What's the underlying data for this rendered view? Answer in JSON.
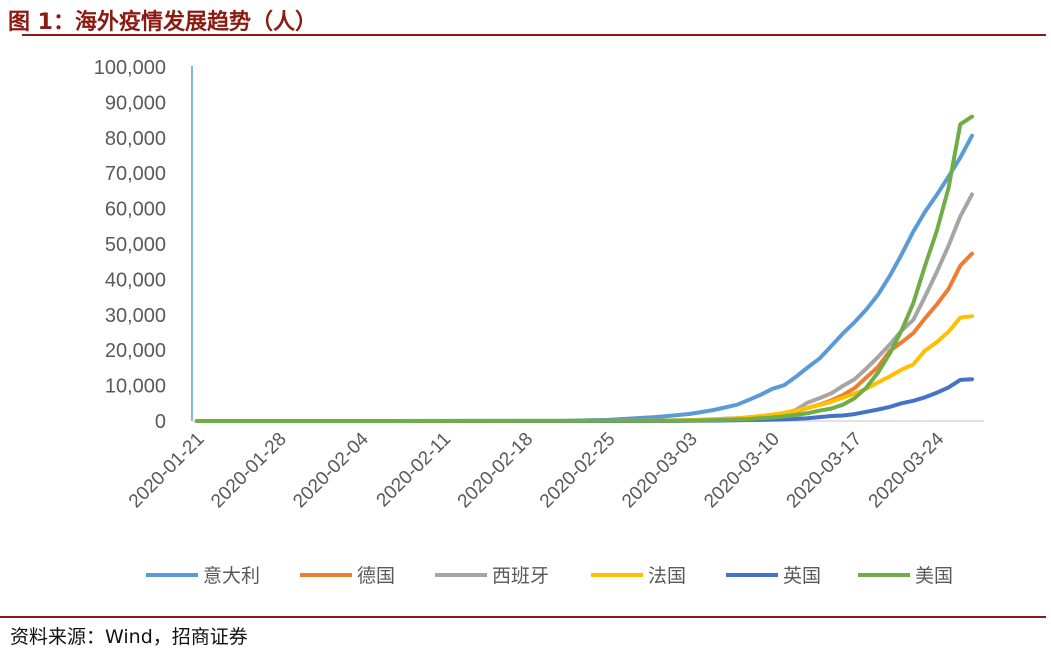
{
  "header": {
    "title": "图 1：海外疫情发展趋势（人）"
  },
  "footer": {
    "source": "资料来源：Wind，招商证券"
  },
  "chart_data": {
    "type": "line",
    "title": "",
    "xlabel": "",
    "ylabel": "",
    "ylim": [
      0,
      100000
    ],
    "yticks": [
      "0",
      "10,000",
      "20,000",
      "30,000",
      "40,000",
      "50,000",
      "60,000",
      "70,000",
      "80,000",
      "90,000",
      "100,000"
    ],
    "xticks": [
      "2020-01-21",
      "2020-01-28",
      "2020-02-04",
      "2020-02-11",
      "2020-02-18",
      "2020-02-25",
      "2020-03-03",
      "2020-03-10",
      "2020-03-17",
      "2020-03-24"
    ],
    "x": [
      "2020-01-21",
      "2020-02-21",
      "2020-02-25",
      "2020-02-29",
      "2020-03-02",
      "2020-03-03",
      "2020-03-05",
      "2020-03-07",
      "2020-03-08",
      "2020-03-09",
      "2020-03-10",
      "2020-03-11",
      "2020-03-12",
      "2020-03-13",
      "2020-03-14",
      "2020-03-15",
      "2020-03-16",
      "2020-03-17",
      "2020-03-18",
      "2020-03-19",
      "2020-03-20",
      "2020-03-21",
      "2020-03-22",
      "2020-03-23",
      "2020-03-24",
      "2020-03-25",
      "2020-03-26",
      "2020-03-27"
    ],
    "legend_position": "bottom",
    "grid": false,
    "series": [
      {
        "name": "意大利",
        "color": "#5b9bd5",
        "values": [
          0,
          20,
          300,
          1100,
          1700,
          2000,
          3100,
          4600,
          6000,
          7400,
          9100,
          10100,
          12500,
          15100,
          17600,
          21100,
          24700,
          27900,
          31500,
          35700,
          41000,
          47000,
          53500,
          59100,
          63900,
          69000,
          74400,
          80600
        ]
      },
      {
        "name": "德国",
        "color": "#ed7d31",
        "values": [
          0,
          0,
          16,
          60,
          150,
          190,
          480,
          800,
          1000,
          1200,
          1500,
          1900,
          2700,
          3700,
          4600,
          5800,
          7300,
          9300,
          12300,
          15300,
          19800,
          22200,
          24800,
          29000,
          32900,
          37300,
          43900,
          47300
        ]
      },
      {
        "name": "西班牙",
        "color": "#a5a5a5",
        "values": [
          0,
          2,
          6,
          45,
          120,
          165,
          260,
          500,
          670,
          1000,
          1600,
          2200,
          3100,
          5200,
          6400,
          7800,
          9900,
          11800,
          14800,
          18100,
          21600,
          25500,
          28600,
          35100,
          42100,
          49500,
          57800,
          64000
        ]
      },
      {
        "name": "法国",
        "color": "#ffc000",
        "values": [
          0,
          12,
          14,
          100,
          190,
          210,
          420,
          720,
          1100,
          1400,
          1800,
          2300,
          2900,
          3700,
          4500,
          5400,
          6600,
          7700,
          9100,
          10900,
          12600,
          14500,
          16000,
          19900,
          22300,
          25200,
          29200,
          29600
        ]
      },
      {
        "name": "英国",
        "color": "#4472c4",
        "values": [
          0,
          9,
          13,
          23,
          40,
          51,
          115,
          206,
          273,
          321,
          382,
          456,
          590,
          800,
          1100,
          1400,
          1550,
          1950,
          2600,
          3250,
          3980,
          5000,
          5700,
          6700,
          8000,
          9500,
          11600,
          11800
        ]
      },
      {
        "name": "美国",
        "color": "#70ad47",
        "values": [
          0,
          15,
          53,
          70,
          100,
          120,
          230,
          430,
          550,
          750,
          1000,
          1300,
          1700,
          2200,
          2900,
          3500,
          4600,
          6400,
          9400,
          13700,
          19100,
          25500,
          33300,
          43800,
          53700,
          65800,
          83800,
          86000
        ]
      }
    ]
  }
}
